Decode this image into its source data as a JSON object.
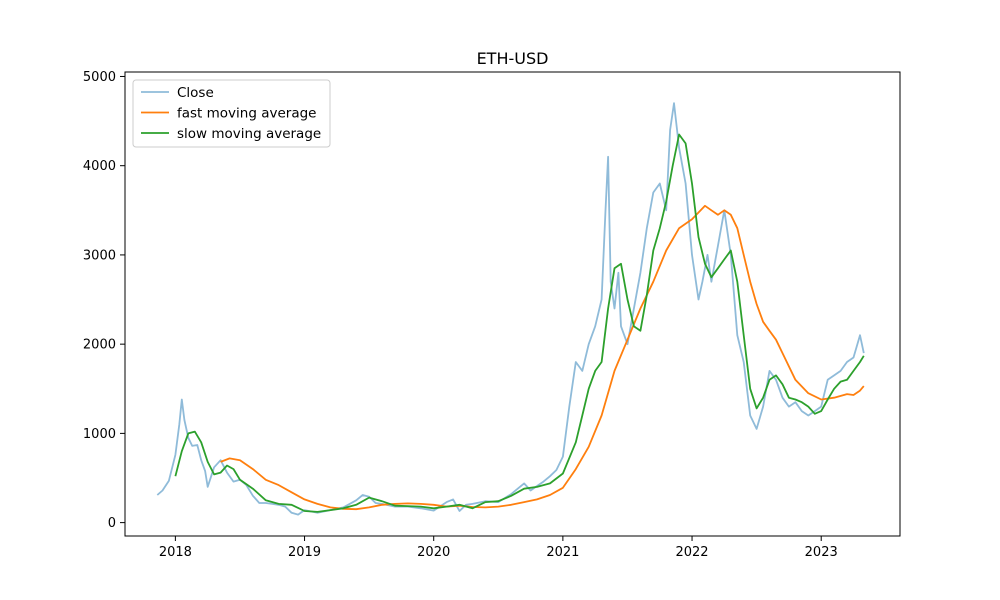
{
  "chart_data": {
    "type": "line",
    "title": "ETH-USD",
    "xlabel": "",
    "ylabel": "",
    "xlim": [
      2017.61,
      2023.61
    ],
    "ylim": [
      -150,
      5050
    ],
    "x_ticks": [
      2018,
      2019,
      2020,
      2021,
      2022,
      2023
    ],
    "x_tick_labels": [
      "2018",
      "2019",
      "2020",
      "2021",
      "2022",
      "2023"
    ],
    "y_ticks": [
      0,
      1000,
      2000,
      3000,
      4000,
      5000
    ],
    "y_tick_labels": [
      "0",
      "1000",
      "2000",
      "3000",
      "4000",
      "5000"
    ],
    "grid": false,
    "legend_position": "upper-left",
    "series": [
      {
        "name": "Close",
        "color": "#1f77b4",
        "opacity": 0.5,
        "x": [
          2017.86,
          2017.9,
          2017.95,
          2018.0,
          2018.03,
          2018.05,
          2018.07,
          2018.1,
          2018.13,
          2018.17,
          2018.2,
          2018.23,
          2018.25,
          2018.3,
          2018.35,
          2018.4,
          2018.45,
          2018.5,
          2018.55,
          2018.6,
          2018.65,
          2018.7,
          2018.75,
          2018.8,
          2018.85,
          2018.9,
          2018.95,
          2019.0,
          2019.1,
          2019.2,
          2019.3,
          2019.4,
          2019.45,
          2019.5,
          2019.55,
          2019.6,
          2019.7,
          2019.8,
          2019.9,
          2020.0,
          2020.1,
          2020.15,
          2020.2,
          2020.25,
          2020.3,
          2020.4,
          2020.5,
          2020.6,
          2020.65,
          2020.7,
          2020.75,
          2020.8,
          2020.85,
          2020.9,
          2020.95,
          2021.0,
          2021.05,
          2021.1,
          2021.15,
          2021.2,
          2021.25,
          2021.3,
          2021.33,
          2021.35,
          2021.37,
          2021.4,
          2021.43,
          2021.45,
          2021.5,
          2021.55,
          2021.6,
          2021.65,
          2021.7,
          2021.75,
          2021.8,
          2021.83,
          2021.86,
          2021.9,
          2021.95,
          2022.0,
          2022.05,
          2022.08,
          2022.12,
          2022.15,
          2022.2,
          2022.25,
          2022.3,
          2022.35,
          2022.4,
          2022.45,
          2022.5,
          2022.55,
          2022.6,
          2022.65,
          2022.7,
          2022.75,
          2022.8,
          2022.85,
          2022.9,
          2022.95,
          2023.0,
          2023.05,
          2023.1,
          2023.15,
          2023.2,
          2023.25,
          2023.3,
          2023.33
        ],
        "y": [
          310,
          360,
          470,
          760,
          1100,
          1380,
          1150,
          950,
          860,
          870,
          700,
          580,
          400,
          620,
          700,
          560,
          460,
          480,
          420,
          300,
          220,
          220,
          210,
          200,
          180,
          110,
          90,
          140,
          110,
          140,
          170,
          250,
          310,
          290,
          220,
          210,
          180,
          180,
          160,
          135,
          230,
          260,
          130,
          200,
          210,
          240,
          230,
          320,
          380,
          440,
          360,
          410,
          460,
          520,
          590,
          740,
          1300,
          1800,
          1700,
          2000,
          2200,
          2500,
          3500,
          4100,
          2700,
          2400,
          2800,
          2200,
          2000,
          2400,
          2800,
          3300,
          3700,
          3800,
          3500,
          4400,
          4700,
          4200,
          3800,
          3000,
          2500,
          2700,
          3000,
          2700,
          3100,
          3500,
          3000,
          2100,
          1800,
          1200,
          1050,
          1300,
          1700,
          1600,
          1400,
          1300,
          1350,
          1250,
          1200,
          1250,
          1300,
          1600,
          1650,
          1700,
          1800,
          1850,
          2100,
          1900
        ]
      },
      {
        "name": "fast moving average",
        "color": "#ff7f0e",
        "opacity": 1,
        "x": [
          2018.35,
          2018.42,
          2018.5,
          2018.6,
          2018.7,
          2018.8,
          2018.9,
          2019.0,
          2019.1,
          2019.2,
          2019.3,
          2019.4,
          2019.5,
          2019.6,
          2019.7,
          2019.8,
          2019.9,
          2020.0,
          2020.1,
          2020.2,
          2020.3,
          2020.4,
          2020.5,
          2020.6,
          2020.7,
          2020.8,
          2020.9,
          2021.0,
          2021.1,
          2021.2,
          2021.3,
          2021.4,
          2021.5,
          2021.6,
          2021.7,
          2021.8,
          2021.9,
          2022.0,
          2022.1,
          2022.15,
          2022.2,
          2022.25,
          2022.3,
          2022.35,
          2022.4,
          2022.45,
          2022.5,
          2022.55,
          2022.6,
          2022.65,
          2022.7,
          2022.8,
          2022.9,
          2023.0,
          2023.1,
          2023.2,
          2023.25,
          2023.3,
          2023.33
        ],
        "y": [
          680,
          720,
          700,
          600,
          480,
          420,
          340,
          260,
          210,
          170,
          155,
          150,
          170,
          200,
          210,
          215,
          210,
          200,
          180,
          190,
          175,
          170,
          180,
          200,
          230,
          260,
          310,
          390,
          600,
          850,
          1200,
          1700,
          2050,
          2400,
          2700,
          3050,
          3300,
          3400,
          3550,
          3500,
          3450,
          3500,
          3450,
          3300,
          3000,
          2700,
          2450,
          2250,
          2150,
          2050,
          1900,
          1600,
          1450,
          1380,
          1400,
          1440,
          1430,
          1480,
          1530
        ]
      },
      {
        "name": "slow moving average",
        "color": "#2ca02c",
        "opacity": 1,
        "x": [
          2018.0,
          2018.05,
          2018.1,
          2018.15,
          2018.2,
          2018.25,
          2018.3,
          2018.35,
          2018.4,
          2018.45,
          2018.5,
          2018.6,
          2018.7,
          2018.8,
          2018.9,
          2019.0,
          2019.1,
          2019.2,
          2019.3,
          2019.4,
          2019.5,
          2019.6,
          2019.7,
          2019.8,
          2019.9,
          2020.0,
          2020.1,
          2020.2,
          2020.3,
          2020.4,
          2020.5,
          2020.6,
          2020.7,
          2020.8,
          2020.9,
          2021.0,
          2021.1,
          2021.15,
          2021.2,
          2021.25,
          2021.3,
          2021.35,
          2021.4,
          2021.45,
          2021.5,
          2021.55,
          2021.6,
          2021.65,
          2021.7,
          2021.75,
          2021.8,
          2021.85,
          2021.9,
          2021.95,
          2022.0,
          2022.05,
          2022.1,
          2022.15,
          2022.2,
          2022.25,
          2022.3,
          2022.35,
          2022.4,
          2022.45,
          2022.5,
          2022.55,
          2022.6,
          2022.65,
          2022.7,
          2022.75,
          2022.8,
          2022.85,
          2022.9,
          2022.95,
          2023.0,
          2023.05,
          2023.1,
          2023.15,
          2023.2,
          2023.25,
          2023.3,
          2023.33
        ],
        "y": [
          520,
          800,
          1000,
          1020,
          900,
          680,
          540,
          560,
          640,
          600,
          480,
          380,
          250,
          210,
          200,
          130,
          120,
          140,
          160,
          200,
          280,
          240,
          190,
          185,
          180,
          160,
          180,
          200,
          160,
          230,
          240,
          300,
          380,
          400,
          440,
          550,
          900,
          1200,
          1500,
          1700,
          1800,
          2400,
          2850,
          2900,
          2500,
          2200,
          2150,
          2550,
          3050,
          3300,
          3600,
          4000,
          4350,
          4250,
          3800,
          3200,
          2900,
          2750,
          2850,
          2950,
          3050,
          2700,
          2100,
          1500,
          1280,
          1400,
          1600,
          1650,
          1550,
          1400,
          1380,
          1350,
          1300,
          1220,
          1250,
          1380,
          1500,
          1580,
          1600,
          1700,
          1800,
          1870
        ]
      }
    ]
  }
}
